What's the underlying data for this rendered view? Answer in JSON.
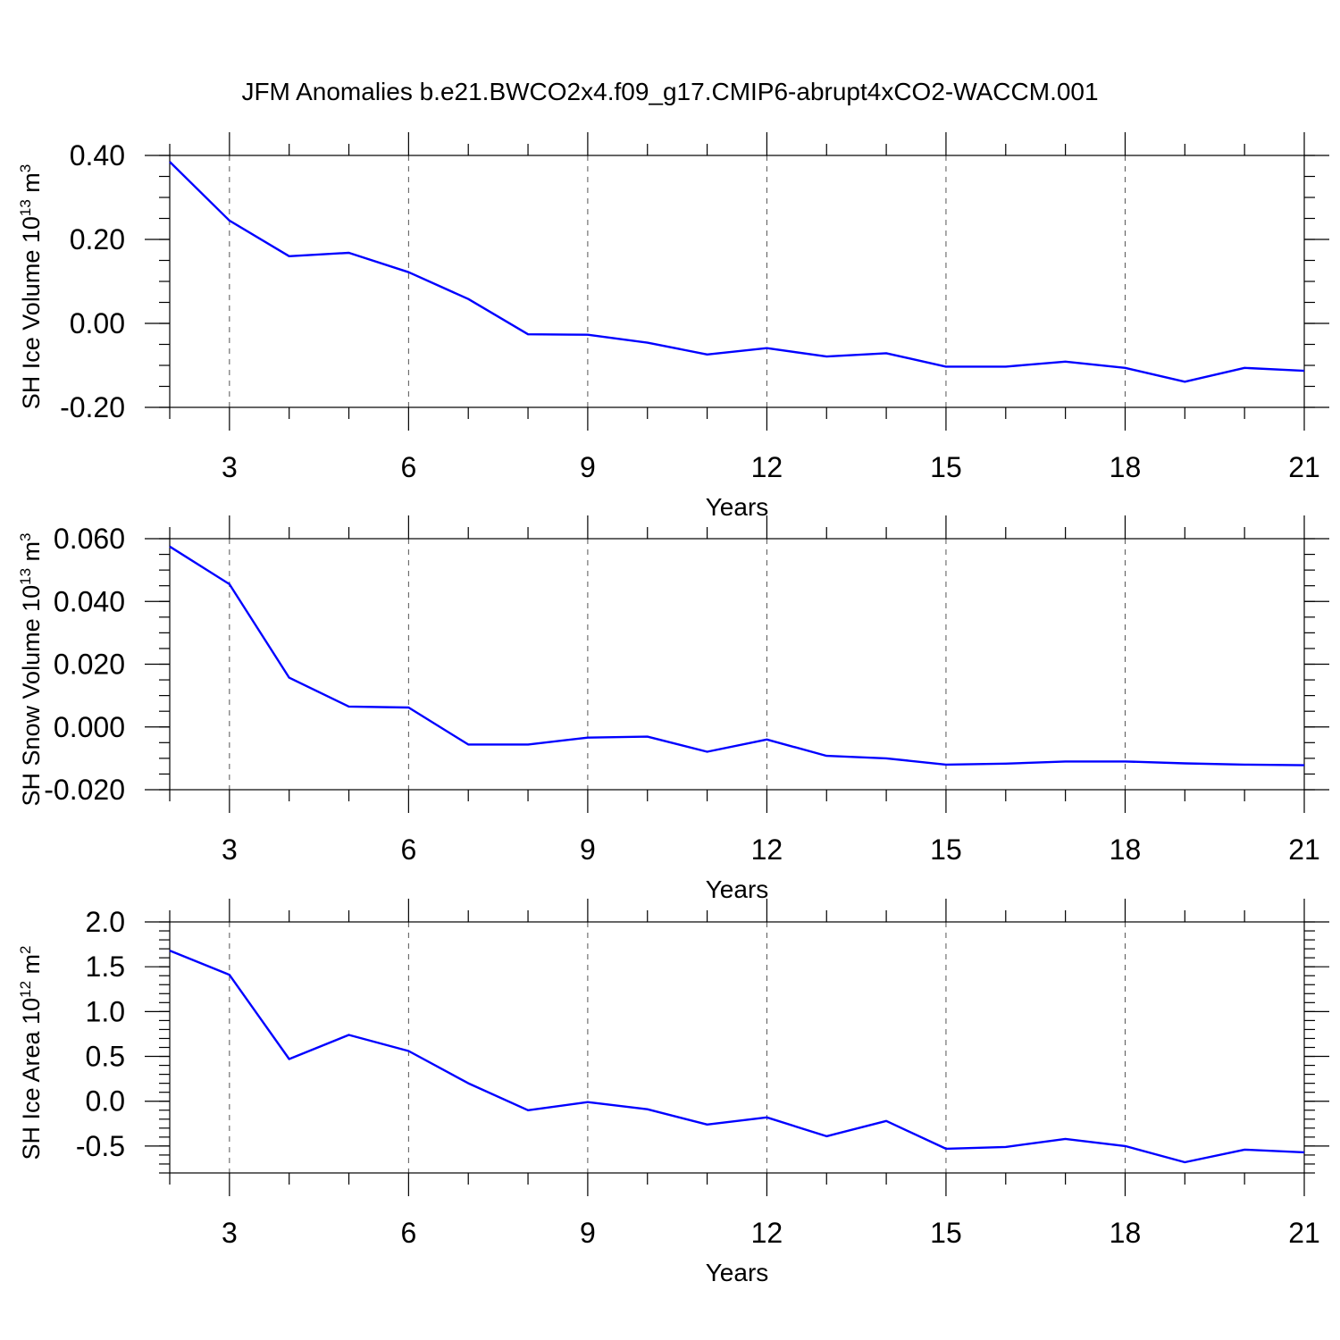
{
  "figure_title": "JFM Anomalies b.e21.BWCO2x4.f09_g17.CMIP6-abrupt4xCO2-WACCM.001",
  "colors": {
    "series": "#0000ff",
    "axes": "#000000",
    "grid": "#555555"
  },
  "chart_data": [
    {
      "type": "line",
      "title": "JFM Anomalies b.e21.BWCO2x4.f09_g17.CMIP6-abrupt4xCO2-WACCM.001",
      "xlabel": "Years",
      "ylabel_base": "SH Ice Volume 10",
      "ylabel_exp": "13",
      "ylabel_unit": " m",
      "ylabel_unit_exp": "3",
      "xlim": [
        2,
        21
      ],
      "ylim": [
        -0.2,
        0.4
      ],
      "x_ticks": [
        3,
        6,
        9,
        12,
        15,
        18,
        21
      ],
      "x_tick_labels": [
        "3",
        "6",
        "9",
        "12",
        "15",
        "18",
        "21"
      ],
      "y_ticks": [
        -0.2,
        0.0,
        0.2,
        0.4
      ],
      "y_tick_labels": [
        "-0.20",
        "0.00",
        "0.20",
        "0.40"
      ],
      "y_minor_step": 0.05,
      "grid": "vertical dashed at major x ticks",
      "x": [
        2,
        3,
        4,
        5,
        6,
        7,
        8,
        9,
        10,
        11,
        12,
        13,
        14,
        15,
        16,
        17,
        18,
        19,
        20,
        21
      ],
      "values": [
        0.385,
        0.245,
        0.16,
        0.168,
        0.122,
        0.058,
        -0.026,
        -0.027,
        -0.046,
        -0.074,
        -0.059,
        -0.079,
        -0.071,
        -0.103,
        -0.103,
        -0.091,
        -0.106,
        -0.139,
        -0.106,
        -0.113
      ]
    },
    {
      "type": "line",
      "title": "",
      "xlabel": "Years",
      "ylabel_base": "SH Snow Volume 10",
      "ylabel_exp": "13",
      "ylabel_unit": " m",
      "ylabel_unit_exp": "3",
      "xlim": [
        2,
        21
      ],
      "ylim": [
        -0.02,
        0.06
      ],
      "x_ticks": [
        3,
        6,
        9,
        12,
        15,
        18,
        21
      ],
      "x_tick_labels": [
        "3",
        "6",
        "9",
        "12",
        "15",
        "18",
        "21"
      ],
      "y_ticks": [
        -0.02,
        0.0,
        0.02,
        0.04,
        0.06
      ],
      "y_tick_labels": [
        "-0.020",
        "0.000",
        "0.020",
        "0.040",
        "0.060"
      ],
      "y_minor_step": 0.005,
      "grid": "vertical dashed at major x ticks",
      "x": [
        2,
        3,
        4,
        5,
        6,
        7,
        8,
        9,
        10,
        11,
        12,
        13,
        14,
        15,
        16,
        17,
        18,
        19,
        20,
        21
      ],
      "values": [
        0.0575,
        0.0455,
        0.0157,
        0.0065,
        0.0062,
        -0.0056,
        -0.0056,
        -0.0034,
        -0.0031,
        -0.0079,
        -0.004,
        -0.0092,
        -0.01,
        -0.012,
        -0.0117,
        -0.011,
        -0.011,
        -0.0116,
        -0.012,
        -0.0122
      ]
    },
    {
      "type": "line",
      "title": "",
      "xlabel": "Years",
      "ylabel_base": "SH Ice Area 10",
      "ylabel_exp": "12",
      "ylabel_unit": " m",
      "ylabel_unit_exp": "2",
      "xlim": [
        2,
        21
      ],
      "ylim": [
        -0.8,
        2.0
      ],
      "x_ticks": [
        3,
        6,
        9,
        12,
        15,
        18,
        21
      ],
      "x_tick_labels": [
        "3",
        "6",
        "9",
        "12",
        "15",
        "18",
        "21"
      ],
      "y_ticks": [
        -0.5,
        0.0,
        0.5,
        1.0,
        1.5,
        2.0
      ],
      "y_tick_labels": [
        "-0.5",
        "0.0",
        "0.5",
        "1.0",
        "1.5",
        "2.0"
      ],
      "y_minor_step": 0.1,
      "grid": "vertical dashed at major x ticks",
      "x": [
        2,
        3,
        4,
        5,
        6,
        7,
        8,
        9,
        10,
        11,
        12,
        13,
        14,
        15,
        16,
        17,
        18,
        19,
        20,
        21
      ],
      "values": [
        1.68,
        1.41,
        0.47,
        0.74,
        0.56,
        0.2,
        -0.1,
        -0.01,
        -0.09,
        -0.26,
        -0.18,
        -0.39,
        -0.22,
        -0.53,
        -0.51,
        -0.42,
        -0.5,
        -0.68,
        -0.54,
        -0.57
      ]
    }
  ]
}
